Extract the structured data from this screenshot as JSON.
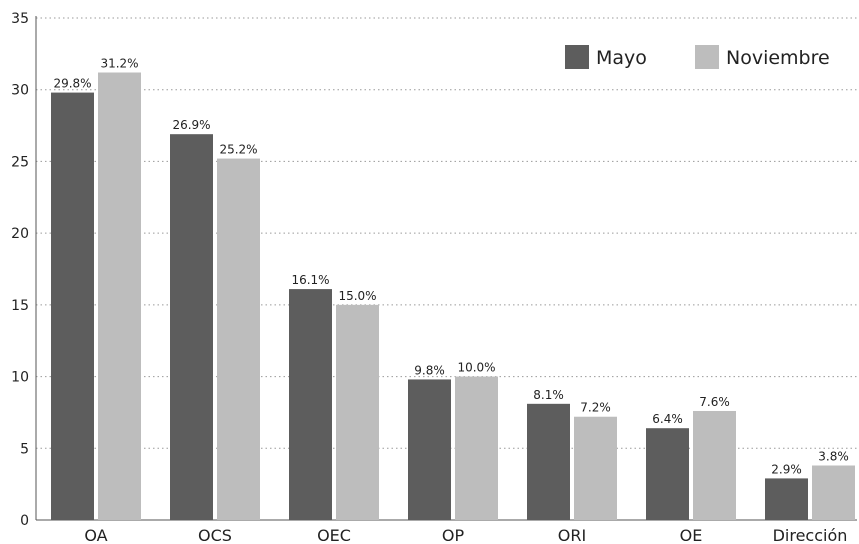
{
  "chart_data": {
    "type": "bar",
    "title": "",
    "xlabel": "",
    "ylabel": "",
    "categories": [
      "OA",
      "OCS",
      "OEC",
      "OP",
      "ORI",
      "OE",
      "Dirección"
    ],
    "series": [
      {
        "name": "Mayo",
        "color": "#5d5d5d",
        "values": [
          29.8,
          26.9,
          16.1,
          9.8,
          8.1,
          6.4,
          2.9
        ],
        "labels": [
          "29.8%",
          "26.9%",
          "16.1%",
          "9.8%",
          "8.1%",
          "6.4%",
          "2.9%"
        ]
      },
      {
        "name": "Noviembre",
        "color": "#bdbdbd",
        "values": [
          31.2,
          25.2,
          15.0,
          10.0,
          7.2,
          7.6,
          3.8
        ],
        "labels": [
          "31.2%",
          "25.2%",
          "15.0%",
          "10.0%",
          "7.2%",
          "7.6%",
          "3.8%"
        ]
      }
    ],
    "ylim": [
      0,
      35
    ],
    "yticks": [
      "0",
      "5",
      "10",
      "15",
      "20",
      "25",
      "30",
      "35"
    ],
    "grid": true,
    "legend_position": "top-right"
  }
}
